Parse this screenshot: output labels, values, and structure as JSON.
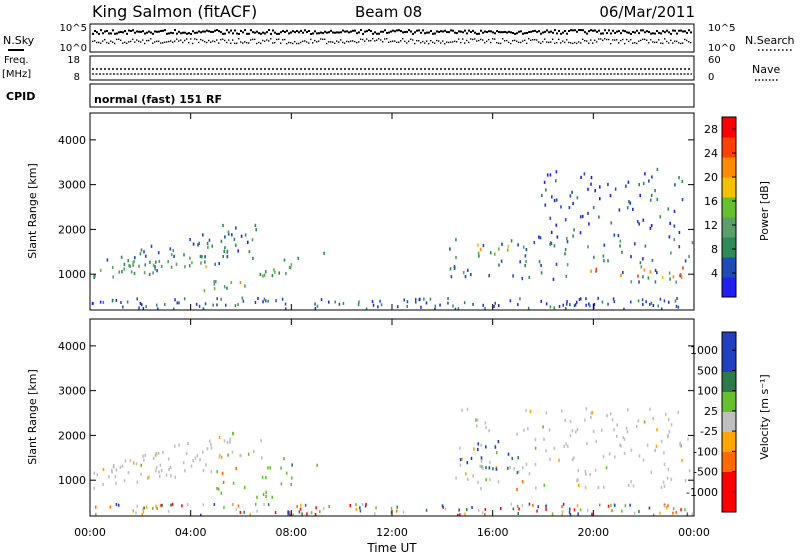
{
  "header": {
    "station": "King Salmon (fitACF)",
    "beam": "Beam 08",
    "date": "06/Mar/2011"
  },
  "noise_panel": {
    "left_label": "N.Sky",
    "right_label": "N.Search",
    "left_ticks": [
      "10^5",
      "10^0"
    ],
    "right_ticks": [
      "10^5",
      "10^0"
    ]
  },
  "freq_panel": {
    "left_label_1": "Freq.",
    "left_label_2": "[MHz]",
    "right_label": "Nave",
    "left_ticks": [
      "18",
      "8"
    ],
    "right_ticks": [
      "60",
      "0"
    ]
  },
  "cpid": {
    "label": "CPID",
    "value": "normal (fast) 151 RF"
  },
  "colors": {
    "power": [
      "#2020f0",
      "#1f4bb5",
      "#2e8b57",
      "#5a9e6a",
      "#66c02e",
      "#f5c000",
      "#ff8c00",
      "#ff4000",
      "#ff0000"
    ],
    "velocity": [
      "#2040c0",
      "#2e7a4a",
      "#66c02e",
      "#c0c0c0",
      "#ffa500",
      "#ff6a00",
      "#ff0000"
    ]
  },
  "chart_data": [
    {
      "type": "heatmap",
      "title": "",
      "xlabel": "",
      "ylabel": "Slant Range [km]",
      "x_ticks": [
        "00:00",
        "04:00",
        "08:00",
        "12:00",
        "16:00",
        "20:00",
        "00:00"
      ],
      "y_ticks": [
        "1000",
        "2000",
        "3000",
        "4000"
      ],
      "ylim": [
        200,
        4600
      ],
      "x_unit": "hours UT",
      "xlim": [
        0,
        24
      ],
      "colorbar": {
        "label": "Power [dB]",
        "ticks": [
          "4",
          "8",
          "12",
          "16",
          "20",
          "24",
          "28"
        ],
        "range": [
          0,
          30
        ]
      },
      "regions": [
        {
          "t_start": 0.1,
          "t_end": 6.6,
          "r_low": 800,
          "r_high": 2300,
          "shape": "rising-band",
          "value": 8
        },
        {
          "t_start": 0.2,
          "t_end": 4.8,
          "r_low": 1000,
          "r_high": 1300,
          "value": 14
        },
        {
          "t_start": 4.5,
          "t_end": 8.0,
          "r_low": 600,
          "r_high": 1300,
          "shape": "rising-band",
          "value": 12
        },
        {
          "t_start": 5.3,
          "t_end": 6.0,
          "r_low": 650,
          "r_high": 1000,
          "value": 20
        },
        {
          "t_start": 7.6,
          "t_end": 9.3,
          "r_low": 1300,
          "r_high": 1500,
          "value": 6
        },
        {
          "t_start": 14.2,
          "t_end": 24,
          "r_low": 800,
          "r_high": 1800,
          "value": 8
        },
        {
          "t_start": 14.8,
          "t_end": 16.8,
          "r_low": 1300,
          "r_high": 1650,
          "value": 18
        },
        {
          "t_start": 19.5,
          "t_end": 23.8,
          "r_low": 900,
          "r_high": 1200,
          "value": 22
        },
        {
          "t_start": 17.8,
          "t_end": 23.9,
          "r_low": 1800,
          "r_high": 3400,
          "value": 5
        }
      ]
    },
    {
      "type": "heatmap",
      "title": "",
      "xlabel": "Time UT",
      "ylabel": "Slant Range [km]",
      "x_ticks": [
        "00:00",
        "04:00",
        "08:00",
        "12:00",
        "16:00",
        "20:00",
        "00:00"
      ],
      "y_ticks": [
        "1000",
        "2000",
        "3000",
        "4000"
      ],
      "ylim": [
        200,
        4600
      ],
      "x_unit": "hours UT",
      "xlim": [
        0,
        24
      ],
      "colorbar": {
        "label": "Velocity [m s⁻¹]",
        "ticks": [
          "1000",
          "500",
          "100",
          "25",
          "-25",
          "-100",
          "-500",
          "-1000"
        ]
      },
      "regions": [
        {
          "t_start": 0.1,
          "t_end": 6.8,
          "r_low": 800,
          "r_high": 2300,
          "shape": "rising-band",
          "value": 0
        },
        {
          "t_start": 4.6,
          "t_end": 8.0,
          "r_low": 600,
          "r_high": 1300,
          "value": 60
        },
        {
          "t_start": 5.2,
          "t_end": 5.8,
          "r_low": 650,
          "r_high": 1300,
          "value": -300
        },
        {
          "t_start": 7.6,
          "t_end": 9.3,
          "r_low": 1300,
          "r_high": 1500,
          "value": 80
        },
        {
          "t_start": 14.5,
          "t_end": 24,
          "r_low": 800,
          "r_high": 2600,
          "value": 0
        },
        {
          "t_start": 14.6,
          "t_end": 16.6,
          "r_low": 1200,
          "r_high": 1900,
          "value": 600
        },
        {
          "t_start": 15.6,
          "t_end": 17.4,
          "r_low": 1000,
          "r_high": 1500,
          "value": 120
        },
        {
          "t_start": 16.8,
          "t_end": 17.4,
          "r_low": 700,
          "r_high": 1100,
          "value": -200
        }
      ]
    }
  ]
}
